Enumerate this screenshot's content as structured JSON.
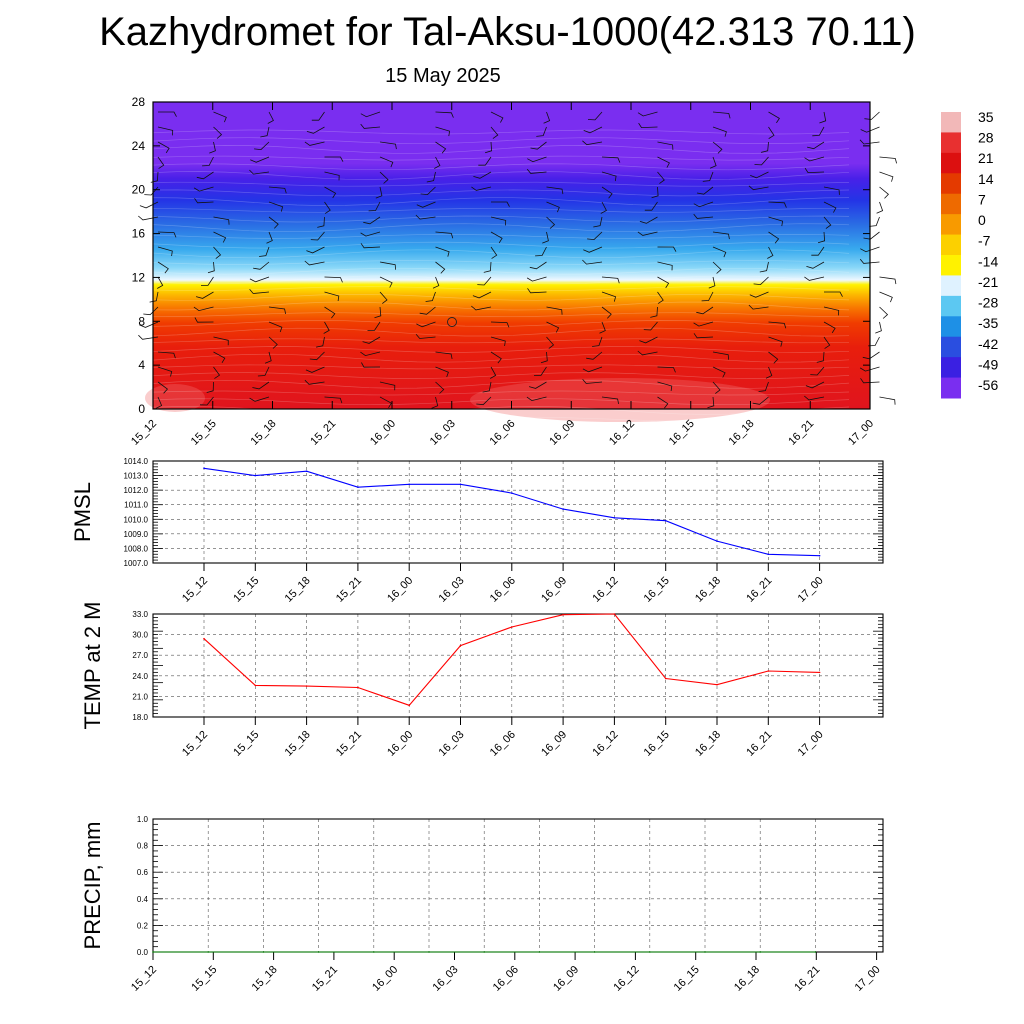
{
  "title": "Kazhydromet for Tal-Aksu-1000(42.313 70.11)",
  "subtitle": "15 May 2025",
  "chart_data": [
    {
      "type": "heatmap",
      "name": "temperature-height cross section",
      "x_ticks": [
        "15_12",
        "15_15",
        "15_18",
        "15_21",
        "16_00",
        "16_03",
        "16_06",
        "16_09",
        "16_12",
        "16_15",
        "16_18",
        "16_21",
        "17_00"
      ],
      "y_ticks": [
        0,
        4,
        8,
        12,
        16,
        20,
        24,
        28
      ],
      "ylim": [
        0,
        28
      ],
      "colorbar_labels": [
        35,
        28,
        21,
        14,
        7,
        0,
        -7,
        -14,
        -21,
        -28,
        -35,
        -42,
        -49,
        -56
      ],
      "colorbar_colors": [
        "#f2b8b8",
        "#e83030",
        "#dc1010",
        "#e43a00",
        "#ee6a00",
        "#f89a00",
        "#fcd000",
        "#fff200",
        "#dff2ff",
        "#5cc8f2",
        "#1e90e6",
        "#2a4ee0",
        "#3a20e2",
        "#7a2ef0"
      ],
      "grid": false,
      "wind_barbs": true
    },
    {
      "type": "line",
      "ylabel": "PMSL",
      "x": [
        "15_12",
        "15_15",
        "15_18",
        "15_21",
        "16_00",
        "16_03",
        "16_06",
        "16_09",
        "16_12",
        "16_15",
        "16_18",
        "16_21",
        "17_00"
      ],
      "values": [
        1013.5,
        1013.0,
        1013.3,
        1012.2,
        1012.4,
        1012.4,
        1011.8,
        1010.7,
        1010.1,
        1009.9,
        1008.5,
        1007.6,
        1007.5
      ],
      "y_ticks": [
        "1014.0",
        "1013.0",
        "1012.0",
        "1011.0",
        "1010.0",
        "1009.0",
        "1008.0",
        "1007.0"
      ],
      "ylim": [
        1007,
        1014
      ],
      "color": "#0000ff",
      "grid": true
    },
    {
      "type": "line",
      "ylabel": "TEMP at 2 M",
      "x": [
        "15_12",
        "15_15",
        "15_18",
        "15_21",
        "16_00",
        "16_03",
        "16_06",
        "16_09",
        "16_12",
        "16_15",
        "16_18",
        "16_21",
        "17_00"
      ],
      "values": [
        29.4,
        22.6,
        22.5,
        22.3,
        19.7,
        28.4,
        31.1,
        32.9,
        33.0,
        23.6,
        22.7,
        24.7,
        24.5
      ],
      "y_ticks": [
        "33.0",
        "30.0",
        "27.0",
        "24.0",
        "21.0",
        "18.0"
      ],
      "ylim": [
        18,
        33
      ],
      "color": "#ff0000",
      "grid": true
    },
    {
      "type": "line",
      "ylabel": "PRECIP, mm",
      "x": [
        "15_12",
        "15_15",
        "15_18",
        "15_21",
        "16_00",
        "16_03",
        "16_06",
        "16_09",
        "16_12",
        "16_15",
        "16_18",
        "16_21",
        "17_00"
      ],
      "values": [
        0,
        0,
        0,
        0,
        0,
        0,
        0,
        0,
        0,
        0,
        0,
        0,
        0
      ],
      "y_ticks": [
        "1.0",
        "0.8",
        "0.6",
        "0.4",
        "0.2",
        "0.0"
      ],
      "ylim": [
        0,
        1
      ],
      "color": "#008000",
      "grid": true
    }
  ]
}
